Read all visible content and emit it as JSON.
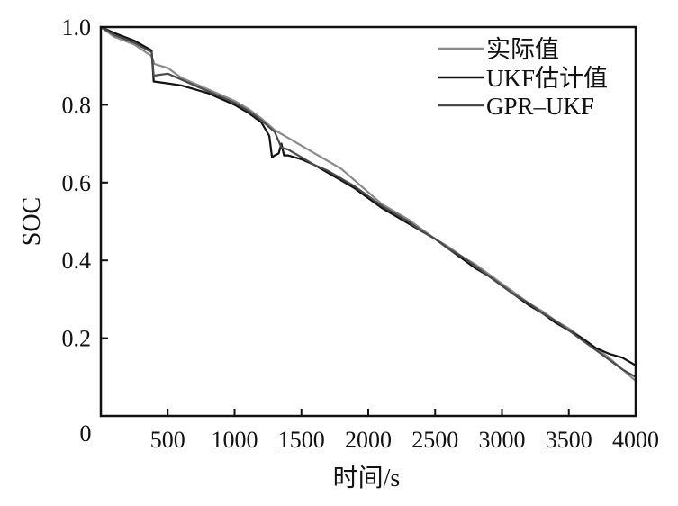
{
  "chart_data": {
    "type": "line",
    "xlabel": "时间/s",
    "ylabel": "SOC",
    "xlim": [
      0,
      4000
    ],
    "ylim": [
      0,
      1.0
    ],
    "x_ticks": [
      0,
      500,
      1000,
      1500,
      2000,
      2500,
      3000,
      3500,
      4000
    ],
    "x_tick_labels": [
      "0",
      "500",
      "1000",
      "1500",
      "2000",
      "2500",
      "3000",
      "3500",
      "4000"
    ],
    "y_ticks": [
      0.2,
      0.4,
      0.6,
      0.8,
      1.0
    ],
    "y_tick_labels": [
      "0.2",
      "0.4",
      "0.6",
      "0.8",
      "1.0"
    ],
    "grid": false,
    "legend_position": "top-right",
    "series": [
      {
        "name": "实际值",
        "color": "#8a8a8a",
        "points": [
          [
            0,
            1.0
          ],
          [
            100,
            0.975
          ],
          [
            250,
            0.955
          ],
          [
            380,
            0.925
          ],
          [
            400,
            0.905
          ],
          [
            500,
            0.895
          ],
          [
            600,
            0.87
          ],
          [
            700,
            0.855
          ],
          [
            800,
            0.84
          ],
          [
            900,
            0.825
          ],
          [
            1000,
            0.81
          ],
          [
            1100,
            0.79
          ],
          [
            1200,
            0.765
          ],
          [
            1300,
            0.735
          ],
          [
            1400,
            0.715
          ],
          [
            1500,
            0.695
          ],
          [
            1600,
            0.675
          ],
          [
            1700,
            0.655
          ],
          [
            1800,
            0.635
          ],
          [
            1900,
            0.605
          ],
          [
            2000,
            0.575
          ],
          [
            2100,
            0.545
          ],
          [
            2200,
            0.525
          ],
          [
            2300,
            0.505
          ],
          [
            2400,
            0.48
          ],
          [
            2500,
            0.455
          ],
          [
            2600,
            0.435
          ],
          [
            2700,
            0.41
          ],
          [
            2800,
            0.39
          ],
          [
            2900,
            0.365
          ],
          [
            3000,
            0.34
          ],
          [
            3100,
            0.315
          ],
          [
            3200,
            0.29
          ],
          [
            3300,
            0.27
          ],
          [
            3400,
            0.245
          ],
          [
            3500,
            0.225
          ],
          [
            3600,
            0.2
          ],
          [
            3700,
            0.175
          ],
          [
            3800,
            0.15
          ],
          [
            3900,
            0.12
          ],
          [
            4000,
            0.09
          ]
        ]
      },
      {
        "name": "UKF估计值",
        "color": "#111111",
        "points": [
          [
            0,
            1.0
          ],
          [
            100,
            0.985
          ],
          [
            250,
            0.965
          ],
          [
            380,
            0.94
          ],
          [
            395,
            0.86
          ],
          [
            500,
            0.855
          ],
          [
            600,
            0.85
          ],
          [
            700,
            0.84
          ],
          [
            800,
            0.83
          ],
          [
            900,
            0.815
          ],
          [
            1000,
            0.8
          ],
          [
            1100,
            0.78
          ],
          [
            1200,
            0.755
          ],
          [
            1260,
            0.72
          ],
          [
            1280,
            0.665
          ],
          [
            1300,
            0.67
          ],
          [
            1330,
            0.675
          ],
          [
            1350,
            0.7
          ],
          [
            1370,
            0.67
          ],
          [
            1400,
            0.67
          ],
          [
            1500,
            0.66
          ],
          [
            1600,
            0.645
          ],
          [
            1700,
            0.625
          ],
          [
            1800,
            0.605
          ],
          [
            1900,
            0.585
          ],
          [
            2000,
            0.56
          ],
          [
            2100,
            0.535
          ],
          [
            2200,
            0.515
          ],
          [
            2300,
            0.495
          ],
          [
            2400,
            0.475
          ],
          [
            2500,
            0.455
          ],
          [
            2600,
            0.43
          ],
          [
            2700,
            0.405
          ],
          [
            2800,
            0.38
          ],
          [
            2900,
            0.36
          ],
          [
            3000,
            0.335
          ],
          [
            3100,
            0.31
          ],
          [
            3200,
            0.285
          ],
          [
            3300,
            0.265
          ],
          [
            3400,
            0.24
          ],
          [
            3500,
            0.22
          ],
          [
            3600,
            0.2
          ],
          [
            3700,
            0.175
          ],
          [
            3800,
            0.16
          ],
          [
            3900,
            0.15
          ],
          [
            4000,
            0.13
          ]
        ]
      },
      {
        "name": "GPR–UKF",
        "color": "#4a4a4a",
        "points": [
          [
            0,
            1.0
          ],
          [
            100,
            0.98
          ],
          [
            250,
            0.96
          ],
          [
            380,
            0.935
          ],
          [
            395,
            0.875
          ],
          [
            500,
            0.88
          ],
          [
            600,
            0.865
          ],
          [
            700,
            0.85
          ],
          [
            800,
            0.835
          ],
          [
            900,
            0.82
          ],
          [
            1000,
            0.805
          ],
          [
            1100,
            0.785
          ],
          [
            1200,
            0.76
          ],
          [
            1300,
            0.73
          ],
          [
            1350,
            0.69
          ],
          [
            1400,
            0.685
          ],
          [
            1500,
            0.665
          ],
          [
            1600,
            0.645
          ],
          [
            1700,
            0.63
          ],
          [
            1800,
            0.61
          ],
          [
            1900,
            0.59
          ],
          [
            2000,
            0.565
          ],
          [
            2100,
            0.54
          ],
          [
            2200,
            0.52
          ],
          [
            2300,
            0.5
          ],
          [
            2400,
            0.475
          ],
          [
            2500,
            0.455
          ],
          [
            2600,
            0.43
          ],
          [
            2700,
            0.41
          ],
          [
            2800,
            0.385
          ],
          [
            2900,
            0.36
          ],
          [
            3000,
            0.335
          ],
          [
            3100,
            0.31
          ],
          [
            3200,
            0.29
          ],
          [
            3300,
            0.265
          ],
          [
            3400,
            0.245
          ],
          [
            3500,
            0.22
          ],
          [
            3600,
            0.195
          ],
          [
            3700,
            0.17
          ],
          [
            3800,
            0.145
          ],
          [
            3900,
            0.12
          ],
          [
            4000,
            0.1
          ]
        ]
      }
    ]
  }
}
